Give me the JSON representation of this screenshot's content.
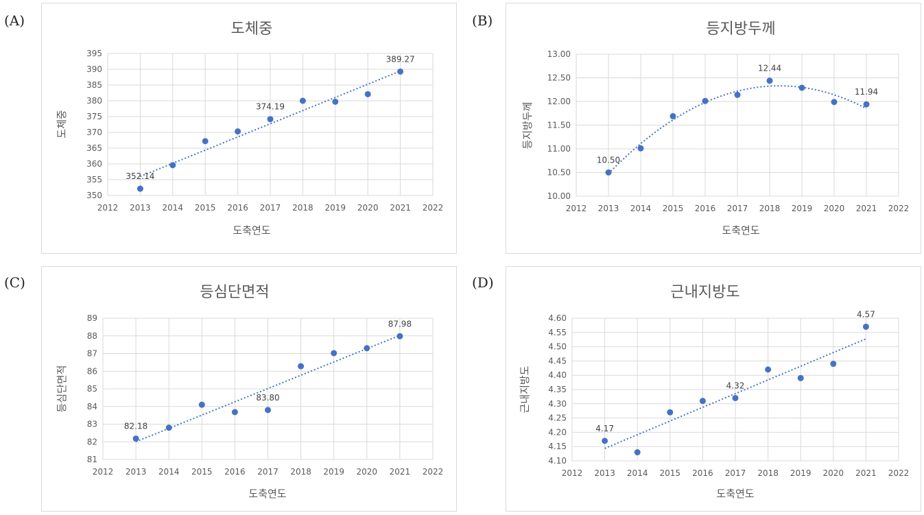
{
  "panels": [
    {
      "label": "(A)"
    },
    {
      "label": "(B)"
    },
    {
      "label": "(C)"
    },
    {
      "label": "(D)"
    }
  ],
  "colors": {
    "marker": "#4472C4",
    "grid": "#d9d9d9",
    "text": "#595959"
  },
  "chart_data": [
    {
      "type": "scatter",
      "title": "도체중",
      "xlabel": "도축연도",
      "ylabel": "도체중",
      "xlim": [
        2012,
        2022
      ],
      "ylim": [
        350,
        395
      ],
      "yticks": [
        "350",
        "355",
        "360",
        "365",
        "370",
        "375",
        "380",
        "385",
        "390",
        "395"
      ],
      "xticks": [
        "2012",
        "2013",
        "2014",
        "2015",
        "2016",
        "2017",
        "2018",
        "2019",
        "2020",
        "2021",
        "2022"
      ],
      "x": [
        2013,
        2014,
        2015,
        2016,
        2017,
        2018,
        2019,
        2020,
        2021
      ],
      "y": [
        352.14,
        359.6,
        367.2,
        370.3,
        374.19,
        380.0,
        379.7,
        382.1,
        389.27
      ],
      "annotations": [
        {
          "x": 2013,
          "y": 352.14,
          "text": "352.14"
        },
        {
          "x": 2017,
          "y": 374.19,
          "text": "374.19"
        },
        {
          "x": 2021,
          "y": 389.27,
          "text": "389.27"
        }
      ],
      "trendline": "linear",
      "grid": true
    },
    {
      "type": "scatter",
      "title": "등지방두께",
      "xlabel": "도축연도",
      "ylabel": "등지방두께",
      "xlim": [
        2012,
        2022
      ],
      "ylim": [
        10.0,
        13.0
      ],
      "yticks": [
        "10.00",
        "10.50",
        "11.00",
        "11.50",
        "12.00",
        "12.50",
        "13.00"
      ],
      "xticks": [
        "2012",
        "2013",
        "2014",
        "2015",
        "2016",
        "2017",
        "2018",
        "2019",
        "2020",
        "2021",
        "2022"
      ],
      "x": [
        2013,
        2014,
        2015,
        2016,
        2017,
        2018,
        2019,
        2020,
        2021
      ],
      "y": [
        10.5,
        11.01,
        11.69,
        12.01,
        12.14,
        12.44,
        12.29,
        11.99,
        11.94
      ],
      "annotations": [
        {
          "x": 2013,
          "y": 10.5,
          "text": "10.50"
        },
        {
          "x": 2018,
          "y": 12.44,
          "text": "12.44"
        },
        {
          "x": 2021,
          "y": 11.94,
          "text": "11.94"
        }
      ],
      "trendline": "polynomial",
      "grid": true
    },
    {
      "type": "scatter",
      "title": "등심단면적",
      "xlabel": "도축연도",
      "ylabel": "등심단면적",
      "xlim": [
        2012,
        2022
      ],
      "ylim": [
        81,
        89
      ],
      "yticks": [
        "81",
        "82",
        "83",
        "84",
        "85",
        "86",
        "87",
        "88",
        "89"
      ],
      "xticks": [
        "2012",
        "2013",
        "2014",
        "2015",
        "2016",
        "2017",
        "2018",
        "2019",
        "2020",
        "2021",
        "2022"
      ],
      "x": [
        2013,
        2014,
        2015,
        2016,
        2017,
        2018,
        2019,
        2020,
        2021
      ],
      "y": [
        82.18,
        82.8,
        84.1,
        83.68,
        83.8,
        86.28,
        87.02,
        87.3,
        87.98
      ],
      "annotations": [
        {
          "x": 2013,
          "y": 82.18,
          "text": "82.18"
        },
        {
          "x": 2017,
          "y": 83.8,
          "text": "83.80"
        },
        {
          "x": 2021,
          "y": 87.98,
          "text": "87.98"
        }
      ],
      "trendline": "linear",
      "grid": true
    },
    {
      "type": "scatter",
      "title": "근내지방도",
      "xlabel": "도축연도",
      "ylabel": "근내지방도",
      "xlim": [
        2012,
        2022
      ],
      "ylim": [
        4.1,
        4.6
      ],
      "yticks": [
        "4.10",
        "4.15",
        "4.20",
        "4.25",
        "4.30",
        "4.35",
        "4.40",
        "4.45",
        "4.50",
        "4.55",
        "4.60"
      ],
      "xticks": [
        "2012",
        "2013",
        "2014",
        "2015",
        "2016",
        "2017",
        "2018",
        "2019",
        "2020",
        "2021",
        "2022"
      ],
      "x": [
        2013,
        2014,
        2015,
        2016,
        2017,
        2018,
        2019,
        2020,
        2021
      ],
      "y": [
        4.17,
        4.13,
        4.27,
        4.31,
        4.32,
        4.42,
        4.39,
        4.44,
        4.57
      ],
      "annotations": [
        {
          "x": 2013,
          "y": 4.17,
          "text": "4.17"
        },
        {
          "x": 2017,
          "y": 4.32,
          "text": "4.32"
        },
        {
          "x": 2021,
          "y": 4.57,
          "text": "4.57"
        }
      ],
      "trendline": "linear",
      "grid": true
    }
  ]
}
